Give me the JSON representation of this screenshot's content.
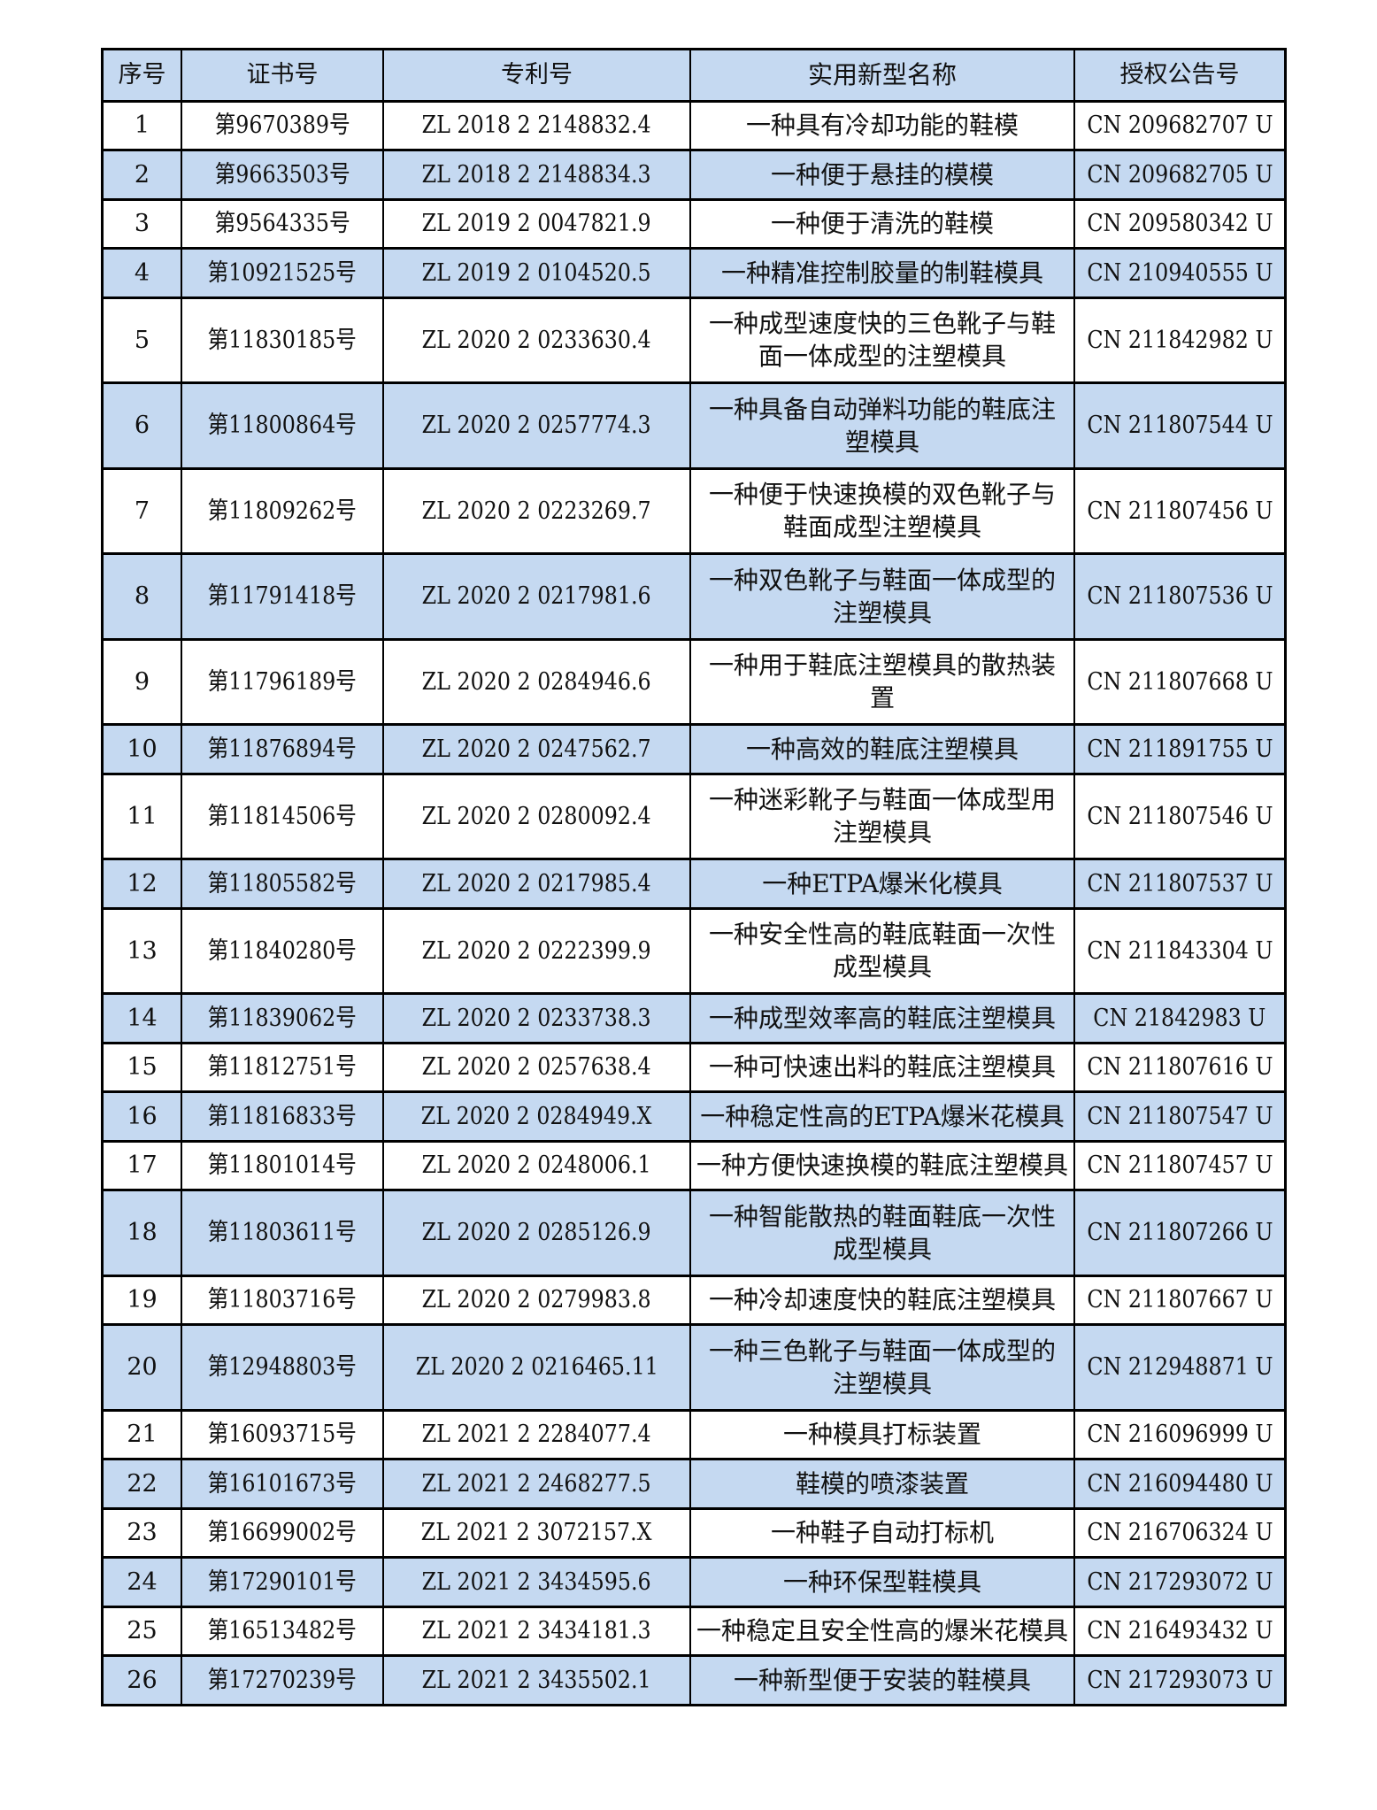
{
  "table": {
    "header_color": "#c5d9f1",
    "headers": [
      "序号",
      "证书号",
      "专利号",
      "实用新型名称",
      "授权公告号"
    ],
    "rows": [
      {
        "no": "1",
        "cert": "第9670389号",
        "patent": "ZL 2018 2 2148832.4",
        "name": "一种具有冷却功能的鞋模",
        "pub": "CN 209682707 U"
      },
      {
        "no": "2",
        "cert": "第9663503号",
        "patent": "ZL 2018 2 2148834.3",
        "name": "一种便于悬挂的模模",
        "pub": "CN 209682705 U"
      },
      {
        "no": "3",
        "cert": "第9564335号",
        "patent": "ZL 2019 2 0047821.9",
        "name": "一种便于清洗的鞋模",
        "pub": "CN 209580342 U"
      },
      {
        "no": "4",
        "cert": "第10921525号",
        "patent": "ZL 2019 2 0104520.5",
        "name": "一种精准控制胶量的制鞋模具",
        "pub": "CN 210940555 U"
      },
      {
        "no": "5",
        "cert": "第11830185号",
        "patent": "ZL 2020 2 0233630.4",
        "name": "一种成型速度快的三色靴子与鞋面一体成型的注塑模具",
        "pub": "CN 211842982 U"
      },
      {
        "no": "6",
        "cert": "第11800864号",
        "patent": "ZL 2020 2 0257774.3",
        "name": "一种具备自动弹料功能的鞋底注塑模具",
        "pub": "CN 211807544 U"
      },
      {
        "no": "7",
        "cert": "第11809262号",
        "patent": "ZL 2020 2 0223269.7",
        "name": "一种便于快速换模的双色靴子与鞋面成型注塑模具",
        "pub": "CN 211807456 U"
      },
      {
        "no": "8",
        "cert": "第11791418号",
        "patent": "ZL 2020 2 0217981.6",
        "name": "一种双色靴子与鞋面一体成型的注塑模具",
        "pub": "CN 211807536 U"
      },
      {
        "no": "9",
        "cert": "第11796189号",
        "patent": "ZL 2020 2 0284946.6",
        "name": "一种用于鞋底注塑模具的散热装置",
        "pub": "CN 211807668 U"
      },
      {
        "no": "10",
        "cert": "第11876894号",
        "patent": "ZL 2020 2 0247562.7",
        "name": "一种高效的鞋底注塑模具",
        "pub": "CN 211891755 U"
      },
      {
        "no": "11",
        "cert": "第11814506号",
        "patent": "ZL 2020 2 0280092.4",
        "name": "一种迷彩靴子与鞋面一体成型用注塑模具",
        "pub": "CN 211807546 U"
      },
      {
        "no": "12",
        "cert": "第11805582号",
        "patent": "ZL 2020 2 0217985.4",
        "name": "一种ETPA爆米化模具",
        "pub": "CN 211807537 U"
      },
      {
        "no": "13",
        "cert": "第11840280号",
        "patent": "ZL 2020 2 0222399.9",
        "name": "一种安全性高的鞋底鞋面一次性成型模具",
        "pub": "CN 211843304 U"
      },
      {
        "no": "14",
        "cert": "第11839062号",
        "patent": "ZL 2020 2 0233738.3",
        "name": "一种成型效率高的鞋底注塑模具",
        "pub": "CN 21842983 U"
      },
      {
        "no": "15",
        "cert": "第11812751号",
        "patent": "ZL 2020 2 0257638.4",
        "name": "一种可快速出料的鞋底注塑模具",
        "pub": "CN 211807616 U"
      },
      {
        "no": "16",
        "cert": "第11816833号",
        "patent": "ZL 2020 2 0284949.X",
        "name": "一种稳定性高的ETPA爆米花模具",
        "pub": "CN 211807547 U"
      },
      {
        "no": "17",
        "cert": "第11801014号",
        "patent": "ZL 2020 2 0248006.1",
        "name": "一种方便快速换模的鞋底注塑模具",
        "pub": "CN 211807457 U"
      },
      {
        "no": "18",
        "cert": "第11803611号",
        "patent": "ZL 2020 2 0285126.9",
        "name": "一种智能散热的鞋面鞋底一次性成型模具",
        "pub": "CN 211807266 U"
      },
      {
        "no": "19",
        "cert": "第11803716号",
        "patent": "ZL 2020 2 0279983.8",
        "name": "一种冷却速度快的鞋底注塑模具",
        "pub": "CN 211807667 U"
      },
      {
        "no": "20",
        "cert": "第12948803号",
        "patent": "ZL 2020 2 0216465.11",
        "name": "一种三色靴子与鞋面一体成型的注塑模具",
        "pub": "CN 212948871 U"
      },
      {
        "no": "21",
        "cert": "第16093715号",
        "patent": "ZL 2021 2 2284077.4",
        "name": "一种模具打标装置",
        "pub": "CN 216096999 U"
      },
      {
        "no": "22",
        "cert": "第16101673号",
        "patent": "ZL 2021 2 2468277.5",
        "name": "鞋模的喷漆装置",
        "pub": "CN 216094480 U"
      },
      {
        "no": "23",
        "cert": "第16699002号",
        "patent": "ZL 2021 2 3072157.X",
        "name": "一种鞋子自动打标机",
        "pub": "CN 216706324 U"
      },
      {
        "no": "24",
        "cert": "第17290101号",
        "patent": "ZL 2021 2 3434595.6",
        "name": "一种环保型鞋模具",
        "pub": "CN 217293072 U"
      },
      {
        "no": "25",
        "cert": "第16513482号",
        "patent": "ZL 2021 2 3434181.3",
        "name": "一种稳定且安全性高的爆米花模具",
        "pub": "CN 216493432 U"
      },
      {
        "no": "26",
        "cert": "第17270239号",
        "patent": "ZL 2021 2 3435502.1",
        "name": "一种新型便于安装的鞋模具",
        "pub": "CN 217293073 U"
      }
    ]
  }
}
